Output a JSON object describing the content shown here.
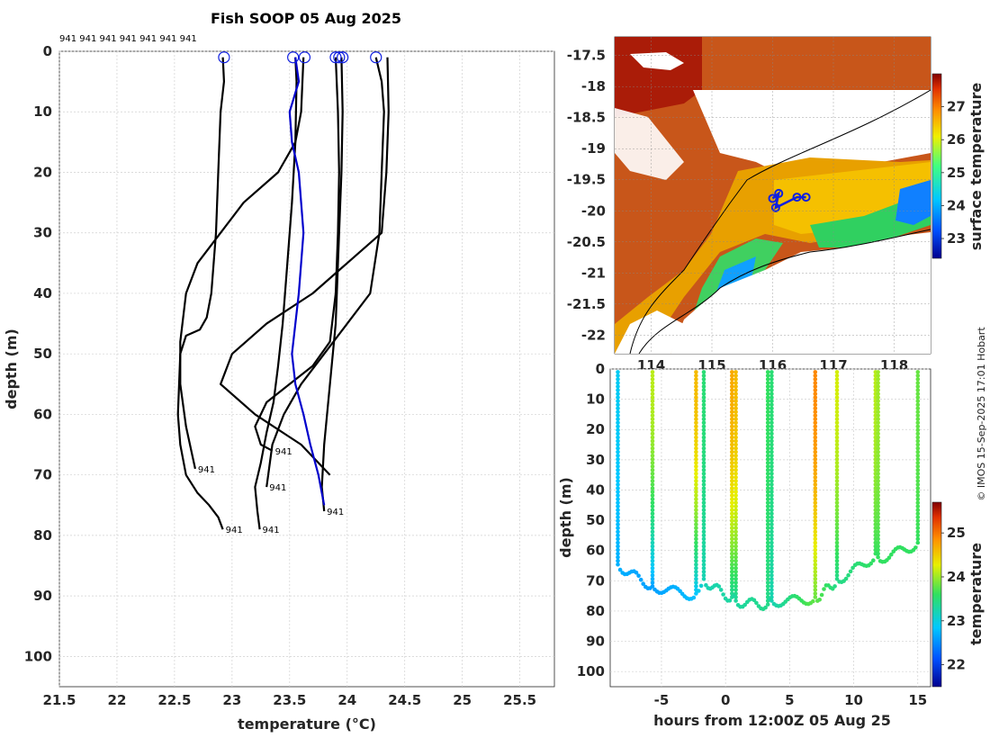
{
  "chart_data": [
    {
      "type": "line",
      "title": "Fish SOOP 05 Aug 2025",
      "xlabel": "temperature (°C)",
      "ylabel": "depth (m)",
      "xlim": [
        21.5,
        25.8
      ],
      "ylim": [
        105,
        0
      ],
      "x_ticks": [
        "21.5",
        "22",
        "22.5",
        "23",
        "23.5",
        "24",
        "24.5",
        "25",
        "25.5"
      ],
      "y_ticks": [
        "0",
        "10",
        "20",
        "30",
        "40",
        "50",
        "60",
        "70",
        "80",
        "90",
        "100"
      ],
      "vessel_id_row": "941 941 941 941 941 941 941",
      "profile_label": "941",
      "profiles": [
        {
          "color": "#000000",
          "temp": [
            22.92,
            22.93,
            22.9,
            22.88,
            22.86,
            22.82,
            22.78,
            22.72,
            22.6,
            22.55,
            22.54,
            22.53,
            22.55,
            22.6,
            22.7,
            22.8,
            22.88,
            22.92
          ],
          "depth": [
            1,
            5,
            10,
            20,
            30,
            40,
            44,
            46,
            47,
            50,
            55,
            60,
            65,
            70,
            73,
            75,
            77,
            79
          ],
          "end_label": {
            "text": "941",
            "depth": 79
          }
        },
        {
          "color": "#000000",
          "temp": [
            23.55,
            23.56,
            23.55,
            23.52,
            23.48,
            23.44,
            23.4,
            23.36,
            23.3,
            23.25,
            23.2,
            23.22,
            23.24
          ],
          "depth": [
            1,
            5,
            15,
            25,
            35,
            45,
            52,
            58,
            63,
            68,
            72,
            76,
            79
          ],
          "end_label": {
            "text": "941",
            "depth": 79
          }
        },
        {
          "color": "#000000",
          "temp": [
            23.62,
            23.6,
            23.55,
            23.4,
            23.1,
            22.9,
            22.7,
            22.6,
            22.55,
            22.55,
            22.6,
            22.68
          ],
          "depth": [
            1,
            10,
            15,
            20,
            25,
            30,
            35,
            40,
            48,
            55,
            62,
            69
          ],
          "end_label": {
            "text": "941",
            "depth": 69
          }
        },
        {
          "color": "#000000",
          "temp": [
            23.9,
            23.92,
            23.93,
            23.92,
            23.9,
            23.85,
            23.7,
            23.5,
            23.3,
            23.2,
            23.25,
            23.35
          ],
          "depth": [
            1,
            10,
            20,
            30,
            40,
            48,
            52,
            55,
            58,
            62,
            65,
            66
          ],
          "end_label": {
            "text": "941",
            "depth": 66
          }
        },
        {
          "color": "#000000",
          "temp": [
            23.95,
            23.96,
            23.95,
            23.93,
            23.9,
            23.85,
            23.8,
            23.78,
            23.8
          ],
          "depth": [
            1,
            10,
            20,
            30,
            45,
            55,
            65,
            72,
            76
          ],
          "end_label": {
            "text": "941",
            "depth": 76
          }
        },
        {
          "color": "#000000",
          "temp": [
            24.25,
            24.3,
            24.32,
            24.3,
            24.28,
            24.2,
            24.0,
            23.8,
            23.6,
            23.45,
            23.35,
            23.3
          ],
          "depth": [
            1,
            5,
            10,
            20,
            30,
            40,
            45,
            50,
            55,
            60,
            65,
            72
          ],
          "end_label": {
            "text": "941",
            "depth": 72
          }
        },
        {
          "color": "#000000",
          "temp": [
            24.35,
            24.36,
            24.34,
            24.3,
            24.0,
            23.7,
            23.3,
            23.0,
            22.9,
            23.2,
            23.6,
            23.85
          ],
          "depth": [
            1,
            10,
            20,
            30,
            35,
            40,
            45,
            50,
            55,
            60,
            65,
            70
          ],
          "end_label": {
            "text": "",
            "depth": 70
          }
        },
        {
          "color": "#0000cc",
          "temp": [
            23.55,
            23.58,
            23.5,
            23.52,
            23.58,
            23.6,
            23.62,
            23.6,
            23.58,
            23.55,
            23.52,
            23.55,
            23.62,
            23.68,
            23.75,
            23.8
          ],
          "depth": [
            1,
            5,
            10,
            15,
            20,
            25,
            30,
            35,
            40,
            45,
            50,
            55,
            60,
            65,
            70,
            75
          ],
          "end_label": {
            "text": "",
            "depth": 75
          }
        }
      ],
      "surface_markers_temp": [
        22.93,
        23.53,
        23.63,
        23.9,
        23.93,
        23.96,
        24.25
      ]
    },
    {
      "type": "heatmap",
      "ylabel": "",
      "xlabel": "",
      "lat_ticks": [
        "-17.5",
        "-18",
        "-18.5",
        "-19",
        "-19.5",
        "-20",
        "-20.5",
        "-21",
        "-21.5",
        "-22"
      ],
      "lon_ticks": [
        "114",
        "115",
        "116",
        "117",
        "118"
      ],
      "colorbar_label": "surface temperature",
      "colorbar_ticks": [
        "27",
        "26",
        "25",
        "24",
        "23"
      ],
      "colorbar_range": [
        22.4,
        28
      ],
      "track": [
        [
          116.0,
          -19.8
        ],
        [
          116.1,
          -19.72
        ],
        [
          116.05,
          -19.95
        ],
        [
          116.4,
          -19.78
        ],
        [
          116.55,
          -19.78
        ]
      ]
    },
    {
      "type": "scatter",
      "xlabel": "hours from 12:00Z 05 Aug 25",
      "ylabel": "depth (m)",
      "xlim": [
        -9,
        16
      ],
      "ylim": [
        105,
        0
      ],
      "x_ticks": [
        "-5",
        "0",
        "5",
        "10",
        "15"
      ],
      "y_ticks": [
        "0",
        "10",
        "20",
        "30",
        "40",
        "50",
        "60",
        "70",
        "80",
        "90",
        "100"
      ],
      "colorbar_label": "temperature",
      "colorbar_ticks": [
        "25",
        "24",
        "23",
        "22"
      ],
      "colorbar_range": [
        21.5,
        25.7
      ],
      "casts": [
        {
          "t": -8.4,
          "bottom": 65,
          "surface_temp": 22.9,
          "bottom_temp": 22.7
        },
        {
          "t": -5.7,
          "bottom": 72,
          "surface_temp": 24.1,
          "bottom_temp": 22.6
        },
        {
          "t": -2.3,
          "bottom": 75,
          "surface_temp": 24.6,
          "bottom_temp": 22.8
        },
        {
          "t": -1.7,
          "bottom": 70,
          "surface_temp": 23.5,
          "bottom_temp": 23.2
        },
        {
          "t": 0.5,
          "bottom": 76,
          "surface_temp": 24.7,
          "bottom_temp": 23.3
        },
        {
          "t": 0.8,
          "bottom": 77,
          "surface_temp": 24.6,
          "bottom_temp": 23.3
        },
        {
          "t": 3.3,
          "bottom": 78,
          "surface_temp": 23.6,
          "bottom_temp": 23.4
        },
        {
          "t": 3.6,
          "bottom": 77,
          "surface_temp": 23.5,
          "bottom_temp": 23.2
        },
        {
          "t": 7.0,
          "bottom": 76,
          "surface_temp": 24.9,
          "bottom_temp": 23.8
        },
        {
          "t": 8.7,
          "bottom": 70,
          "surface_temp": 24.2,
          "bottom_temp": 23.4
        },
        {
          "t": 11.7,
          "bottom": 62,
          "surface_temp": 24.1,
          "bottom_temp": 23.6
        },
        {
          "t": 11.9,
          "bottom": 63,
          "surface_temp": 24.0,
          "bottom_temp": 23.6
        },
        {
          "t": 15.0,
          "bottom": 58,
          "surface_temp": 23.8,
          "bottom_temp": 23.6
        }
      ]
    }
  ],
  "credit": "© IMOS 15-Sep-2025 17:01 Hobart"
}
